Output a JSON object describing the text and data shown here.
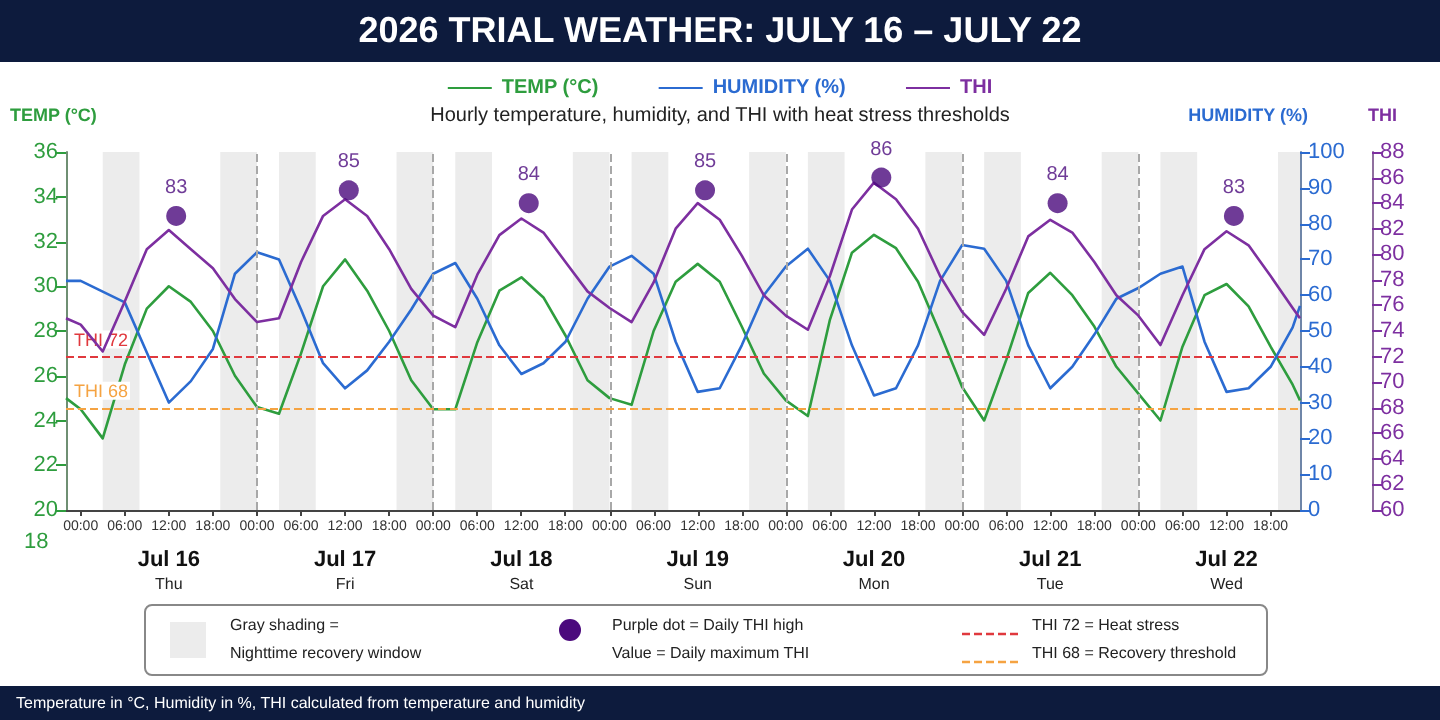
{
  "chart_data": {
    "type": "line",
    "title": "2026 TRIAL WEATHER: JULY 16 – JULY 22",
    "subtitle": "Hourly temperature, humidity, and THI with heat stress thresholds",
    "ylabel": "TEMP (°C)",
    "y2label": "HUMIDITY (%)",
    "y3label": "THI",
    "x": [
      "2026-07-15T22:00",
      "2026-07-16T00:00",
      "2026-07-16T03:00",
      "2026-07-16T06:00",
      "2026-07-16T09:00",
      "2026-07-16T12:00",
      "2026-07-16T15:00",
      "2026-07-16T18:00",
      "2026-07-16T21:00",
      "2026-07-17T00:00",
      "2026-07-17T03:00",
      "2026-07-17T06:00",
      "2026-07-17T09:00",
      "2026-07-17T12:00",
      "2026-07-17T15:00",
      "2026-07-17T18:00",
      "2026-07-17T21:00",
      "2026-07-18T00:00",
      "2026-07-18T03:00",
      "2026-07-18T06:00",
      "2026-07-18T09:00",
      "2026-07-18T12:00",
      "2026-07-18T15:00",
      "2026-07-18T18:00",
      "2026-07-18T21:00",
      "2026-07-19T00:00",
      "2026-07-19T03:00",
      "2026-07-19T06:00",
      "2026-07-19T09:00",
      "2026-07-19T12:00",
      "2026-07-19T15:00",
      "2026-07-19T18:00",
      "2026-07-19T21:00",
      "2026-07-20T00:00",
      "2026-07-20T03:00",
      "2026-07-20T06:00",
      "2026-07-20T09:00",
      "2026-07-20T12:00",
      "2026-07-20T15:00",
      "2026-07-20T18:00",
      "2026-07-20T21:00",
      "2026-07-21T00:00",
      "2026-07-21T03:00",
      "2026-07-21T06:00",
      "2026-07-21T09:00",
      "2026-07-21T12:00",
      "2026-07-21T15:00",
      "2026-07-21T18:00",
      "2026-07-21T21:00",
      "2026-07-22T00:00",
      "2026-07-22T03:00",
      "2026-07-22T06:00",
      "2026-07-22T09:00",
      "2026-07-22T12:00",
      "2026-07-22T15:00",
      "2026-07-22T18:00",
      "2026-07-22T21:00",
      "2026-07-22T22:00"
    ],
    "series": [
      {
        "name": "TEMP (°C)",
        "color": "#2e9d3e",
        "values": [
          25.0,
          24.5,
          23.2,
          26.5,
          29.0,
          30.0,
          29.3,
          28.0,
          26.0,
          24.6,
          24.3,
          27.0,
          30.0,
          31.2,
          29.8,
          28.0,
          25.8,
          24.5,
          24.5,
          27.5,
          29.8,
          30.4,
          29.5,
          27.8,
          25.8,
          25.0,
          24.7,
          28.0,
          30.2,
          31.0,
          30.2,
          28.2,
          26.1,
          24.9,
          24.2,
          28.5,
          31.5,
          32.3,
          31.7,
          30.2,
          27.9,
          25.5,
          24.0,
          26.7,
          29.7,
          30.6,
          29.6,
          28.2,
          26.4,
          25.2,
          24.0,
          27.3,
          29.6,
          30.1,
          29.1,
          27.3,
          25.6,
          24.9
        ]
      },
      {
        "name": "HUMIDITY (%)",
        "color": "#2b6bd1",
        "axis": "y2",
        "values": [
          64,
          64,
          61,
          58,
          44,
          30,
          36,
          45,
          66,
          72,
          70,
          56,
          41,
          34,
          39,
          47,
          56,
          66,
          69,
          59,
          46,
          38,
          41,
          47,
          59,
          68,
          71,
          66,
          47,
          33,
          34,
          46,
          60,
          68,
          73,
          64,
          46,
          32,
          34,
          46,
          64,
          74,
          73,
          64,
          46,
          34,
          40,
          49,
          59,
          62,
          66,
          68,
          47,
          33,
          34,
          40,
          51,
          57
        ]
      },
      {
        "name": "THI",
        "color": "#7d2fa0",
        "axis": "y3",
        "values": [
          75.0,
          74.5,
          72.4,
          76.3,
          80.4,
          81.9,
          80.4,
          78.9,
          76.5,
          74.7,
          75.0,
          79.4,
          83.0,
          84.3,
          83.0,
          80.4,
          77.3,
          75.2,
          74.3,
          78.4,
          81.5,
          82.8,
          81.7,
          79.4,
          77.1,
          75.8,
          74.7,
          77.8,
          82.0,
          84.0,
          82.7,
          79.9,
          76.8,
          75.2,
          74.1,
          78.3,
          83.5,
          85.6,
          84.3,
          82.0,
          78.3,
          75.5,
          73.7,
          77.3,
          81.4,
          82.7,
          81.7,
          79.4,
          76.8,
          75.2,
          72.9,
          76.8,
          80.4,
          81.8,
          80.7,
          78.3,
          75.8,
          75.0
        ]
      },
      {
        "type": "scatter",
        "marker": "circle",
        "color": "#4b0a7d",
        "axis": "y3",
        "x": [
          "2026-07-16T13:00",
          "2026-07-17T12:30",
          "2026-07-18T13:00",
          "2026-07-19T13:00",
          "2026-07-20T13:00",
          "2026-07-21T13:00",
          "2026-07-22T13:00"
        ],
        "values": [
          83,
          85,
          84,
          85,
          86,
          84,
          83
        ],
        "value_labels": [
          "83",
          "85",
          "84",
          "85",
          "86",
          "84",
          "83"
        ]
      }
    ],
    "xlim": [
      "2026-07-15T22:00",
      "2026-07-22T22:00"
    ],
    "xticks": [
      {
        "value": "2026-07-16T00:00",
        "label": "00:00"
      },
      {
        "value": "2026-07-16T06:00",
        "label": "06:00"
      },
      {
        "value": "2026-07-16T12:00",
        "label": "12:00"
      },
      {
        "value": "2026-07-16T18:00",
        "label": "18:00"
      },
      {
        "value": "2026-07-17T00:00",
        "label": "00:00"
      },
      {
        "value": "2026-07-17T06:00",
        "label": "06:00"
      },
      {
        "value": "2026-07-17T12:00",
        "label": "12:00"
      },
      {
        "value": "2026-07-17T18:00",
        "label": "18:00"
      },
      {
        "value": "2026-07-18T00:00",
        "label": "00:00"
      },
      {
        "value": "2026-07-18T06:00",
        "label": "06:00"
      },
      {
        "value": "2026-07-18T12:00",
        "label": "12:00"
      },
      {
        "value": "2026-07-18T18:00",
        "label": "18:00"
      },
      {
        "value": "2026-07-19T00:00",
        "label": "00:00"
      },
      {
        "value": "2026-07-19T06:00",
        "label": "06:00"
      },
      {
        "value": "2026-07-19T12:00",
        "label": "12:00"
      },
      {
        "value": "2026-07-19T18:00",
        "label": "18:00"
      },
      {
        "value": "2026-07-20T00:00",
        "label": "00:00"
      },
      {
        "value": "2026-07-20T06:00",
        "label": "06:00"
      },
      {
        "value": "2026-07-20T12:00",
        "label": "12:00"
      },
      {
        "value": "2026-07-20T18:00",
        "label": "18:00"
      },
      {
        "value": "2026-07-21T00:00",
        "label": "00:00"
      },
      {
        "value": "2026-07-21T06:00",
        "label": "06:00"
      },
      {
        "value": "2026-07-21T12:00",
        "label": "12:00"
      },
      {
        "value": "2026-07-21T18:00",
        "label": "18:00"
      },
      {
        "value": "2026-07-22T00:00",
        "label": "00:00"
      },
      {
        "value": "2026-07-22T06:00",
        "label": "06:00"
      },
      {
        "value": "2026-07-22T12:00",
        "label": "12:00"
      },
      {
        "value": "2026-07-22T18:00",
        "label": "18:00"
      }
    ],
    "x2lim": [
      "2026-07-15T22:00",
      "2026-07-22T22:00"
    ],
    "x2ticks": [
      {
        "value": "2026-07-16T12:00",
        "label": "Jul 16\nThu"
      },
      {
        "value": "2026-07-17T12:00",
        "label": "Jul 17\nFri"
      },
      {
        "value": "2026-07-18T12:00",
        "label": "Jul 18\nSat"
      },
      {
        "value": "2026-07-19T12:00",
        "label": "Jul 19\nSun"
      },
      {
        "value": "2026-07-20T12:00",
        "label": "Jul 20\nMon"
      },
      {
        "value": "2026-07-21T12:00",
        "label": "Jul 21\nTue"
      },
      {
        "value": "2026-07-22T12:00",
        "label": "Jul 22\nWed"
      }
    ],
    "ylim": [
      20,
      36
    ],
    "yticks": [
      20,
      22,
      24,
      26,
      28,
      30,
      32,
      34,
      36
    ],
    "y2lim": [
      0,
      100
    ],
    "y2ticks": [
      0,
      10,
      20,
      30,
      40,
      50,
      60,
      70,
      80,
      90,
      100
    ],
    "y3lim": [
      60,
      88
    ],
    "y3ticks": [
      60,
      62,
      64,
      66,
      68,
      70,
      72,
      74,
      76,
      78,
      80,
      82,
      84,
      86,
      88
    ],
    "ref_lines": [
      {
        "axis": "y3",
        "value": 72,
        "label": "THI 72",
        "color": "#e0393e",
        "line_style": "dashed"
      },
      {
        "axis": "y3",
        "value": 68,
        "label": "THI 68",
        "color": "#f5a342",
        "line_style": "dashed"
      },
      {
        "axis": "x",
        "value": "2026-07-17T00:00",
        "color": "#a8a8a8",
        "line_style": "dashed"
      },
      {
        "axis": "x",
        "value": "2026-07-18T00:00",
        "color": "#a8a8a8",
        "line_style": "dashed"
      },
      {
        "axis": "x",
        "value": "2026-07-19T00:00",
        "color": "#a8a8a8",
        "line_style": "dashed"
      },
      {
        "axis": "x",
        "value": "2026-07-20T00:00",
        "color": "#a8a8a8",
        "line_style": "dashed"
      },
      {
        "axis": "x",
        "value": "2026-07-21T00:00",
        "color": "#a8a8a8",
        "line_style": "dashed"
      },
      {
        "axis": "x",
        "value": "2026-07-22T00:00",
        "color": "#a8a8a8",
        "line_style": "dashed"
      }
    ],
    "bands": [
      {
        "axis": "x",
        "from": "2026-07-16T03:00",
        "to": "2026-07-16T08:00",
        "color": "#ececec"
      },
      {
        "axis": "x",
        "from": "2026-07-16T19:00",
        "to": "2026-07-17T00:00",
        "color": "#ececec"
      },
      {
        "axis": "x",
        "from": "2026-07-17T03:00",
        "to": "2026-07-17T08:00",
        "color": "#ececec"
      },
      {
        "axis": "x",
        "from": "2026-07-17T19:00",
        "to": "2026-07-18T00:00",
        "color": "#ececec"
      },
      {
        "axis": "x",
        "from": "2026-07-18T03:00",
        "to": "2026-07-18T08:00",
        "color": "#ececec"
      },
      {
        "axis": "x",
        "from": "2026-07-18T19:00",
        "to": "2026-07-19T00:00",
        "color": "#ececec"
      },
      {
        "axis": "x",
        "from": "2026-07-19T03:00",
        "to": "2026-07-19T08:00",
        "color": "#ececec"
      },
      {
        "axis": "x",
        "from": "2026-07-19T19:00",
        "to": "2026-07-20T00:00",
        "color": "#ececec"
      },
      {
        "axis": "x",
        "from": "2026-07-20T03:00",
        "to": "2026-07-20T08:00",
        "color": "#ececec"
      },
      {
        "axis": "x",
        "from": "2026-07-20T19:00",
        "to": "2026-07-21T00:00",
        "color": "#ececec"
      },
      {
        "axis": "x",
        "from": "2026-07-21T03:00",
        "to": "2026-07-21T08:00",
        "color": "#ececec"
      },
      {
        "axis": "x",
        "from": "2026-07-21T19:00",
        "to": "2026-07-22T00:00",
        "color": "#ececec"
      },
      {
        "axis": "x",
        "from": "2026-07-22T03:00",
        "to": "2026-07-22T08:00",
        "color": "#ececec"
      },
      {
        "axis": "x",
        "from": "2026-07-22T19:00",
        "to": "2026-07-22T22:00",
        "color": "#ececec"
      }
    ],
    "legend": "top",
    "annotations": [
      "Temperature in °C, Humidity in %, THI calculated from temperature and humidity",
      "18",
      "Gray shading =",
      "Nighttime recovery window",
      "Purple dot = Daily THI high",
      "Value = Daily maximum THI",
      "THI 72 = Heat stress",
      "THI 68 = Recovery threshold"
    ]
  }
}
